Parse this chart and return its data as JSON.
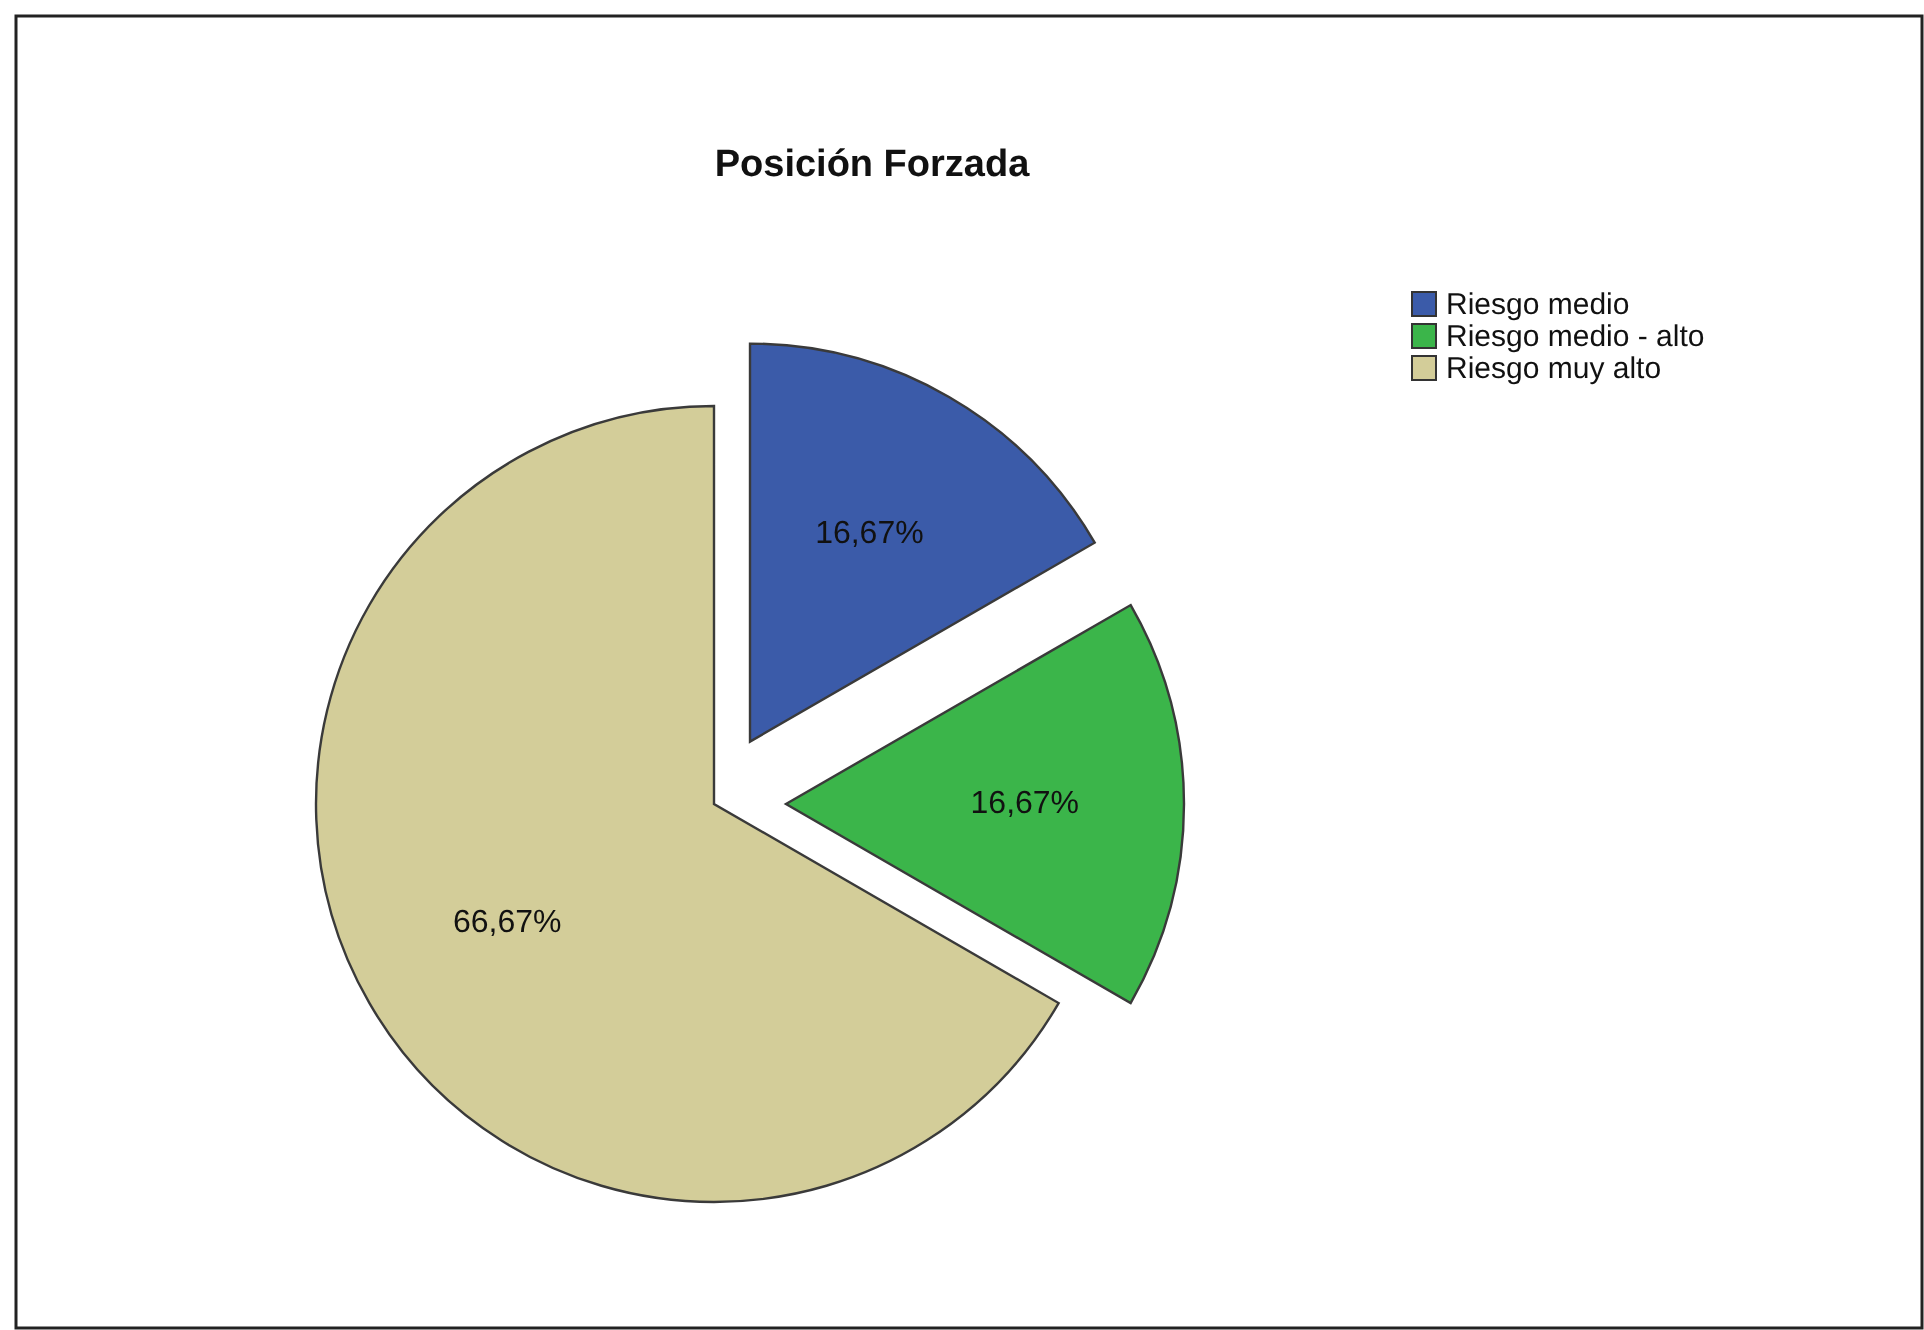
{
  "chart_data": {
    "type": "pie",
    "title": "Posición Forzada",
    "categories": [
      "Riesgo medio",
      "Riesgo medio - alto",
      "Riesgo muy alto"
    ],
    "values": [
      16.67,
      16.67,
      66.67
    ],
    "colors": [
      "#3b5ba9",
      "#3bb54a",
      "#d3cd99"
    ],
    "value_labels": [
      "16,67%",
      "16,67%",
      "66,67%"
    ],
    "legend": "top right"
  }
}
